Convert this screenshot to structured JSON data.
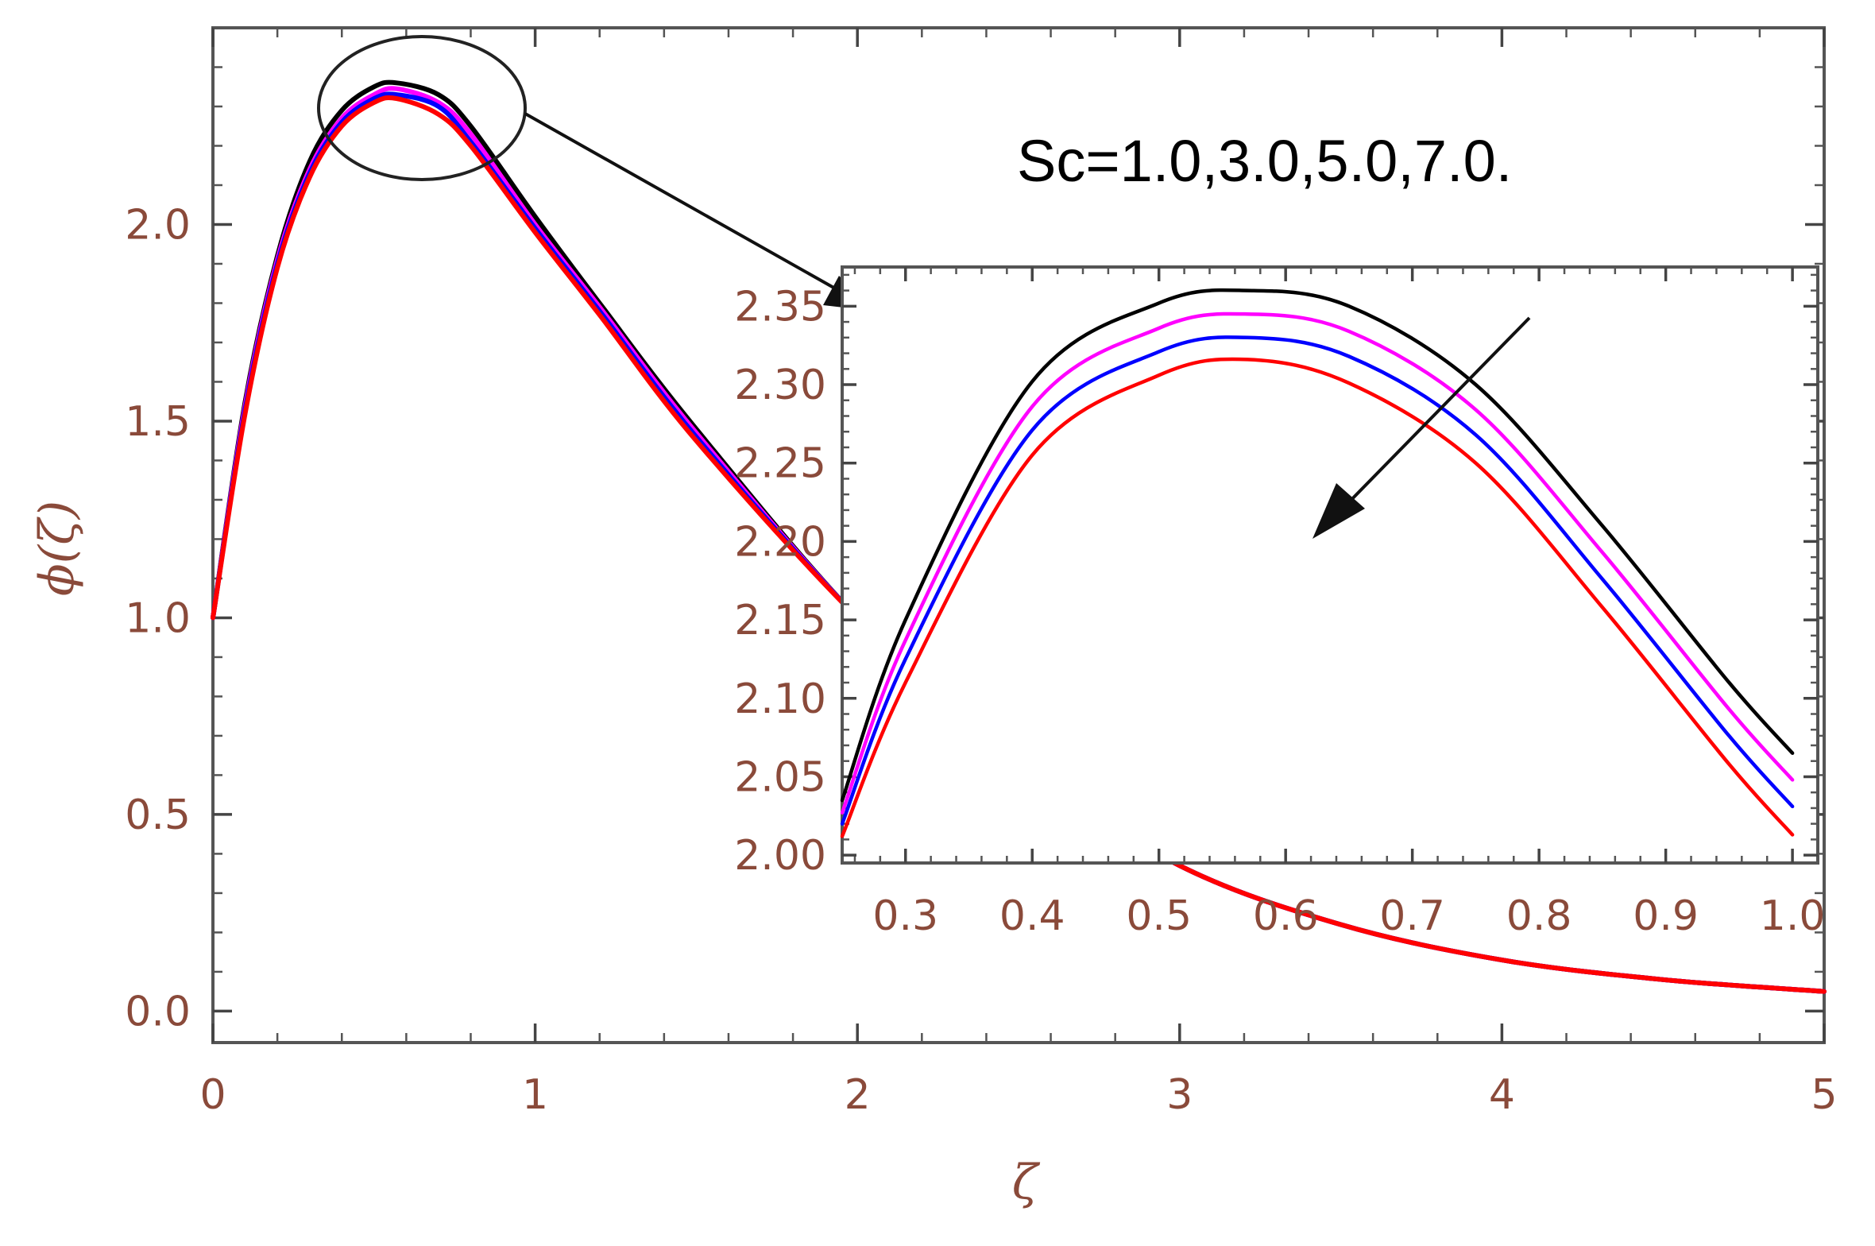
{
  "chart_data": [
    {
      "type": "line",
      "title": "",
      "xlabel": "ζ",
      "ylabel": "ϕ(ζ)",
      "xlim": [
        0,
        5
      ],
      "ylim": [
        -0.08,
        2.5
      ],
      "xticks": [
        "0",
        "1",
        "2",
        "3",
        "4",
        "5"
      ],
      "yticks": [
        "0.0",
        "0.5",
        "1.0",
        "1.5",
        "2.0"
      ],
      "annotation": "Sc=1.0,3.0,5.0,7.0.",
      "colors": [
        "#000000",
        "#ff00ff",
        "#0000ff",
        "#ff0000"
      ],
      "series": [
        {
          "color": "#000000",
          "x": [
            0,
            0.1,
            0.2,
            0.3,
            0.4,
            0.5,
            0.57,
            0.7,
            0.8,
            1.0,
            1.2,
            1.5,
            2.0,
            2.5,
            3.0,
            3.5,
            4.0,
            4.5,
            5.0
          ],
          "y": [
            1.0,
            1.55,
            1.92,
            2.16,
            2.29,
            2.35,
            2.36,
            2.33,
            2.25,
            2.02,
            1.8,
            1.48,
            1.0,
            0.63,
            0.37,
            0.22,
            0.13,
            0.08,
            0.05
          ]
        },
        {
          "color": "#ff00ff",
          "x": [
            0,
            0.1,
            0.2,
            0.3,
            0.4,
            0.5,
            0.57,
            0.7,
            0.8,
            1.0,
            1.2,
            1.5,
            2.0,
            2.5,
            3.0,
            3.5,
            4.0,
            4.5,
            5.0
          ],
          "y": [
            1.0,
            1.54,
            1.91,
            2.14,
            2.27,
            2.33,
            2.345,
            2.31,
            2.23,
            2.0,
            1.79,
            1.47,
            1.0,
            0.63,
            0.37,
            0.22,
            0.13,
            0.08,
            0.05
          ]
        },
        {
          "color": "#0000ff",
          "x": [
            0,
            0.1,
            0.2,
            0.3,
            0.4,
            0.5,
            0.57,
            0.7,
            0.8,
            1.0,
            1.2,
            1.5,
            2.0,
            2.5,
            3.0,
            3.5,
            4.0,
            4.5,
            5.0
          ],
          "y": [
            1.0,
            1.53,
            1.9,
            2.13,
            2.26,
            2.32,
            2.33,
            2.3,
            2.21,
            1.99,
            1.78,
            1.46,
            1.0,
            0.63,
            0.37,
            0.22,
            0.13,
            0.08,
            0.05
          ]
        },
        {
          "color": "#ff0000",
          "x": [
            0,
            0.1,
            0.2,
            0.3,
            0.4,
            0.5,
            0.57,
            0.7,
            0.8,
            1.0,
            1.2,
            1.5,
            2.0,
            2.5,
            3.0,
            3.5,
            4.0,
            4.5,
            5.0
          ],
          "y": [
            1.0,
            1.52,
            1.89,
            2.12,
            2.25,
            2.31,
            2.32,
            2.28,
            2.2,
            1.98,
            1.77,
            1.45,
            1.0,
            0.63,
            0.37,
            0.22,
            0.13,
            0.08,
            0.05
          ]
        }
      ]
    },
    {
      "type": "line",
      "title": "",
      "xlim": [
        0.25,
        1.02
      ],
      "ylim": [
        1.995,
        2.375
      ],
      "xticks": [
        "0.3",
        "0.4",
        "0.5",
        "0.6",
        "0.7",
        "0.8",
        "0.9",
        "1.0"
      ],
      "yticks": [
        "2.00",
        "2.05",
        "2.10",
        "2.15",
        "2.20",
        "2.25",
        "2.30",
        "2.35"
      ],
      "series": [
        {
          "color": "#000000",
          "x": [
            0.25,
            0.3,
            0.4,
            0.5,
            0.57,
            0.65,
            0.75,
            0.85,
            0.95,
            1.0
          ],
          "y": [
            2.035,
            2.15,
            2.302,
            2.352,
            2.36,
            2.35,
            2.3,
            2.21,
            2.11,
            2.065
          ]
        },
        {
          "color": "#ff00ff",
          "x": [
            0.25,
            0.3,
            0.4,
            0.5,
            0.57,
            0.65,
            0.75,
            0.85,
            0.95,
            1.0
          ],
          "y": [
            2.027,
            2.137,
            2.286,
            2.336,
            2.345,
            2.334,
            2.284,
            2.193,
            2.093,
            2.048
          ]
        },
        {
          "color": "#0000ff",
          "x": [
            0.25,
            0.3,
            0.4,
            0.5,
            0.57,
            0.65,
            0.75,
            0.85,
            0.95,
            1.0
          ],
          "y": [
            2.02,
            2.125,
            2.271,
            2.321,
            2.33,
            2.318,
            2.268,
            2.176,
            2.076,
            2.031
          ]
        },
        {
          "color": "#ff0000",
          "x": [
            0.25,
            0.3,
            0.4,
            0.5,
            0.57,
            0.65,
            0.75,
            0.85,
            0.95,
            1.0
          ],
          "y": [
            2.012,
            2.11,
            2.255,
            2.306,
            2.316,
            2.301,
            2.25,
            2.158,
            2.058,
            2.013
          ]
        }
      ]
    }
  ]
}
